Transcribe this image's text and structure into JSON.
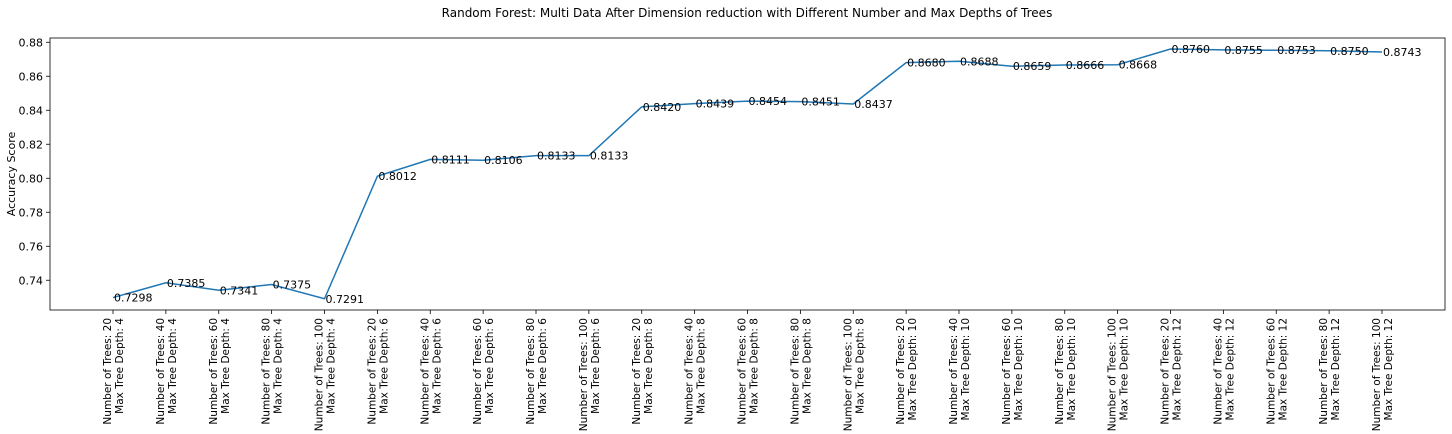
{
  "chart_data": {
    "type": "line",
    "title": "Random Forest: Multi Data After Dimension reduction with Different Number and Max Depths of Trees",
    "xlabel": "",
    "ylabel": "Accuracy Score",
    "ylim": [
      0.7225,
      0.8825
    ],
    "yticks": [
      "0.74",
      "0.76",
      "0.78",
      "0.80",
      "0.82",
      "0.84",
      "0.86",
      "0.88"
    ],
    "grid": false,
    "line_color": "#1f77b4",
    "categories": [
      {
        "line1": "Number of Trees: 20",
        "line2": "Max Tree Depth: 4"
      },
      {
        "line1": "Number of Trees: 40",
        "line2": "Max Tree Depth: 4"
      },
      {
        "line1": "Number of Trees: 60",
        "line2": "Max Tree Depth: 4"
      },
      {
        "line1": "Number of Trees: 80",
        "line2": "Max Tree Depth: 4"
      },
      {
        "line1": "Number of Trees: 100",
        "line2": "Max Tree Depth: 4"
      },
      {
        "line1": "Number of Trees: 20",
        "line2": "Max Tree Depth: 6"
      },
      {
        "line1": "Number of Trees: 40",
        "line2": "Max Tree Depth: 6"
      },
      {
        "line1": "Number of Trees: 60",
        "line2": "Max Tree Depth: 6"
      },
      {
        "line1": "Number of Trees: 80",
        "line2": "Max Tree Depth: 6"
      },
      {
        "line1": "Number of Trees: 100",
        "line2": "Max Tree Depth: 6"
      },
      {
        "line1": "Number of Trees: 20",
        "line2": "Max Tree Depth: 8"
      },
      {
        "line1": "Number of Trees: 40",
        "line2": "Max Tree Depth: 8"
      },
      {
        "line1": "Number of Trees: 60",
        "line2": "Max Tree Depth: 8"
      },
      {
        "line1": "Number of Trees: 80",
        "line2": "Max Tree Depth: 8"
      },
      {
        "line1": "Number of Trees: 100",
        "line2": "Max Tree Depth: 8"
      },
      {
        "line1": "Number of Trees: 20",
        "line2": "Max Tree Depth: 10"
      },
      {
        "line1": "Number of Trees: 40",
        "line2": "Max Tree Depth: 10"
      },
      {
        "line1": "Number of Trees: 60",
        "line2": "Max Tree Depth: 10"
      },
      {
        "line1": "Number of Trees: 80",
        "line2": "Max Tree Depth: 10"
      },
      {
        "line1": "Number of Trees: 100",
        "line2": "Max Tree Depth: 10"
      },
      {
        "line1": "Number of Trees: 20",
        "line2": "Max Tree Depth: 12"
      },
      {
        "line1": "Number of Trees: 40",
        "line2": "Max Tree Depth: 12"
      },
      {
        "line1": "Number of Trees: 60",
        "line2": "Max Tree Depth: 12"
      },
      {
        "line1": "Number of Trees: 80",
        "line2": "Max Tree Depth: 12"
      },
      {
        "line1": "Number of Trees: 100",
        "line2": "Max Tree Depth: 12"
      }
    ],
    "values": [
      0.7298,
      0.7385,
      0.7341,
      0.7375,
      0.7291,
      0.8012,
      0.8111,
      0.8106,
      0.8133,
      0.8133,
      0.842,
      0.8439,
      0.8454,
      0.8451,
      0.8437,
      0.868,
      0.8688,
      0.8659,
      0.8666,
      0.8668,
      0.876,
      0.8755,
      0.8753,
      0.875,
      0.8743
    ],
    "data_labels": [
      "0.7298",
      "0.7385",
      "0.7341",
      "0.7375",
      "0.7291",
      "0.8012",
      "0.8111",
      "0.8106",
      "0.8133",
      "0.8133",
      "0.8420",
      "0.8439",
      "0.8454",
      "0.8451",
      "0.8437",
      "0.8680",
      "0.8688",
      "0.8659",
      "0.8666",
      "0.8668",
      "0.8760",
      "0.8755",
      "0.8753",
      "0.8750",
      "0.8743"
    ]
  }
}
